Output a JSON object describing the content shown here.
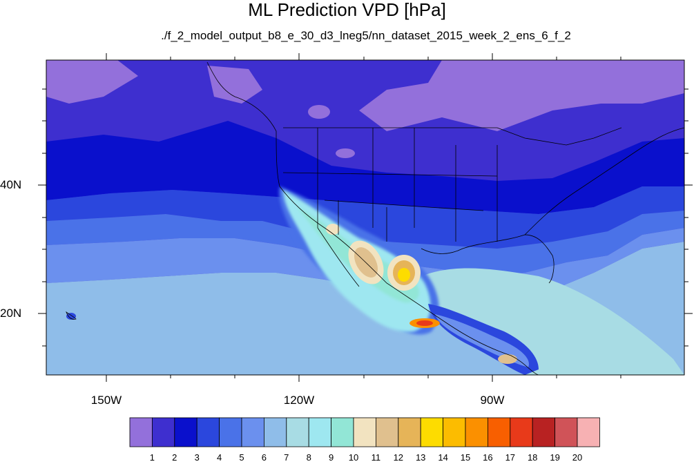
{
  "title": "ML Prediction VPD [hPa]",
  "subtitle": "./f_2_model_output_b8_e_30_d3_lneg5/nn_dataset_2015_week_2_ens_6_f_2",
  "lat_labels": [
    "40N",
    "20N"
  ],
  "lon_labels": [
    "150W",
    "120W",
    "90W"
  ],
  "colorbar": {
    "labels": [
      "1",
      "2",
      "3",
      "4",
      "5",
      "6",
      "7",
      "8",
      "9",
      "10",
      "11",
      "12",
      "13",
      "14",
      "15",
      "16",
      "17",
      "18",
      "19",
      "20"
    ],
    "colors": [
      "#9370db",
      "#3e2fcf",
      "#0a10cc",
      "#2b47dd",
      "#4a72e8",
      "#6b90ee",
      "#8fbde9",
      "#a8dce4",
      "#9ee7f0",
      "#92e6d6",
      "#f2e3c0",
      "#e0c08e",
      "#e6b458",
      "#fddc00",
      "#fcbc00",
      "#fb9000",
      "#f85f00",
      "#e83a1a",
      "#b82222",
      "#d05358",
      "#f7b1b3"
    ]
  }
}
